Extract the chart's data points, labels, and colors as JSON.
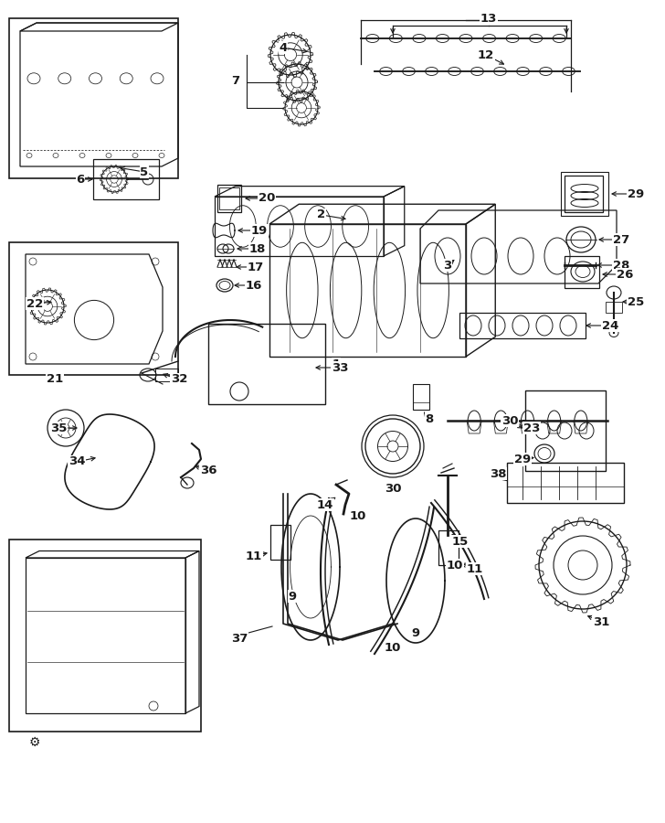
{
  "bg_color": "#ffffff",
  "line_color": "#1a1a1a",
  "fig_width": 7.28,
  "fig_height": 9.0,
  "dpi": 100
}
